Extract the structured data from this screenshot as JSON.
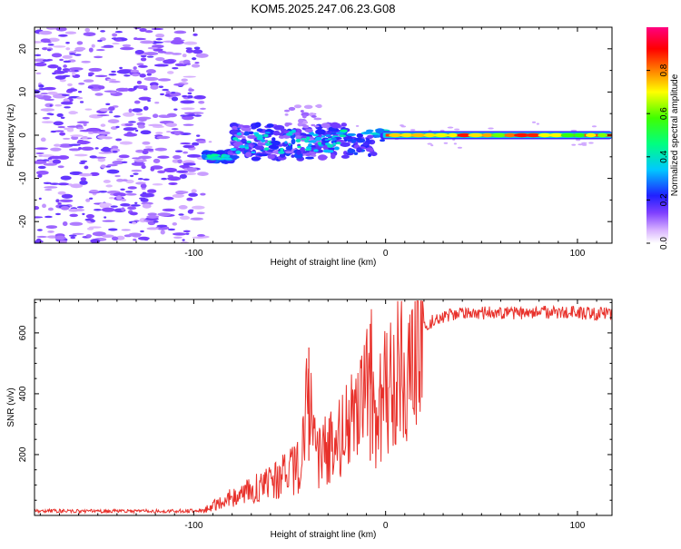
{
  "figure": {
    "title": "KOM5.2025.247.06.23.G08"
  },
  "chart_data": [
    {
      "type": "heatmap",
      "title": "KOM5.2025.247.06.23.G08",
      "xlabel": "Height of straight line (km)",
      "ylabel": "Frequency (Hz)",
      "xlim": [
        -183,
        118
      ],
      "ylim": [
        -25,
        25
      ],
      "xticks": [
        -100,
        0,
        100
      ],
      "xtick_labels": [
        "-100",
        "0",
        "100"
      ],
      "yticks": [
        -20,
        -10,
        0,
        10,
        20
      ],
      "ytick_labels": [
        "-20",
        "-10",
        "0",
        "10",
        "20"
      ],
      "colorbar": {
        "label": "Normalized spectral amplitude",
        "range": [
          0,
          1
        ],
        "ticks": [
          0.0,
          0.2,
          0.4,
          0.6,
          0.8
        ],
        "tick_labels": [
          "0.0",
          "0.2",
          "0.4",
          "0.6",
          "0.8"
        ],
        "colormap": [
          "#ffffff",
          "#d9b3ff",
          "#8040ff",
          "#2020ff",
          "#00c8ff",
          "#00ff80",
          "#40ff00",
          "#ffff00",
          "#ff8000",
          "#ff0000",
          "#ff0080"
        ]
      },
      "features": [
        {
          "name": "noise_field",
          "x_range": [
            -183,
            -95
          ],
          "y_range": [
            -25,
            25
          ],
          "amplitude": 0.12
        },
        {
          "name": "noise_tail",
          "x_range": [
            -95,
            118
          ],
          "y_range": [
            -25,
            25
          ],
          "amplitude": 0.04
        },
        {
          "name": "onset_blob",
          "x_range": [
            -95,
            -80
          ],
          "y_center": -5,
          "amplitude": 0.45
        },
        {
          "name": "scatter_blobs",
          "x_range": [
            -80,
            -20
          ],
          "y_center": -1.5,
          "amplitude": 0.3
        },
        {
          "name": "mid_blob",
          "x_range": [
            -20,
            -5
          ],
          "y_center": -2.5,
          "amplitude": 0.25
        },
        {
          "name": "carrier_line",
          "x_range": [
            0,
            118
          ],
          "y_center": 0,
          "amplitude": 0.85
        }
      ]
    },
    {
      "type": "line",
      "title": "",
      "xlabel": "Height of straight line (km)",
      "ylabel": "SNR (v/v)",
      "xlim": [
        -183,
        118
      ],
      "ylim": [
        0,
        710
      ],
      "xticks": [
        -100,
        0,
        100
      ],
      "xtick_labels": [
        "-100",
        "0",
        "100"
      ],
      "yticks": [
        200,
        400,
        600
      ],
      "ytick_labels": [
        "200",
        "400",
        "600"
      ],
      "color": "#e8302a",
      "series": [
        {
          "name": "SNR",
          "x": [
            -183,
            -150,
            -120,
            -95,
            -90,
            -85,
            -80,
            -75,
            -70,
            -65,
            -60,
            -55,
            -50,
            -45,
            -42,
            -40,
            -38,
            -35,
            -30,
            -25,
            -20,
            -15,
            -10,
            -8,
            -6,
            -4,
            -2,
            0,
            5,
            10,
            15,
            20,
            25,
            30,
            40,
            50,
            60,
            70,
            80,
            90,
            100,
            110,
            118
          ],
          "y": [
            15,
            14,
            14,
            16,
            30,
            50,
            60,
            70,
            85,
            100,
            110,
            125,
            140,
            160,
            260,
            460,
            240,
            190,
            230,
            260,
            300,
            320,
            380,
            560,
            250,
            320,
            380,
            420,
            470,
            520,
            580,
            620,
            640,
            655,
            665,
            665,
            668,
            665,
            668,
            668,
            665,
            665,
            660
          ]
        },
        {
          "name": "spike_markers",
          "x": [
            -40,
            -8
          ],
          "y": [
            552,
            630
          ]
        }
      ]
    }
  ]
}
